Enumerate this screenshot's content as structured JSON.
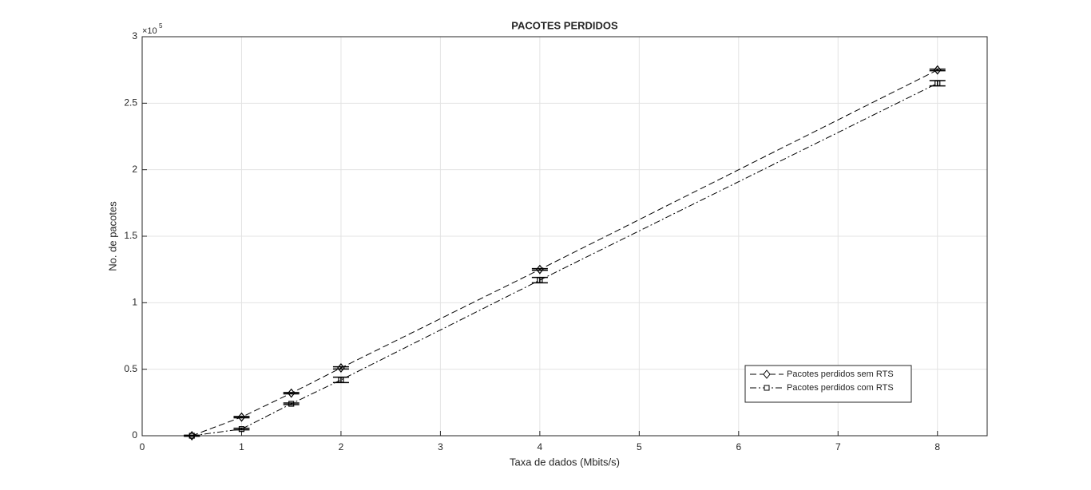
{
  "chart_data": {
    "type": "line",
    "title": "PACOTES PERDIDOS",
    "x_label": "Taxa de dados (Mbits/s)",
    "y_label": "No. de pacotes",
    "y_multiplier": {
      "base": "×10",
      "power": "5"
    },
    "x": [
      0.5,
      1,
      1.5,
      2,
      4,
      8
    ],
    "series": [
      {
        "name": "Pacotes perdidos sem RTS",
        "color": "#000000",
        "dash": "8 4",
        "marker": "diamond",
        "values": [
          0,
          0.14,
          0.32,
          0.51,
          1.25,
          2.75
        ],
        "errors": [
          0.003,
          0.005,
          0.005,
          0.008,
          0.006,
          0.006
        ]
      },
      {
        "name": "Pacotes perdidos com RTS",
        "color": "#000000",
        "dash": "8 3 2 3",
        "marker": "square",
        "values": [
          0,
          0.05,
          0.24,
          0.42,
          1.17,
          2.65
        ],
        "errors": [
          0.003,
          0.006,
          0.006,
          0.02,
          0.02,
          0.02
        ]
      }
    ],
    "xlim": [
      0,
      8.5
    ],
    "ylim": [
      0,
      3
    ],
    "xticks": [
      0,
      1,
      2,
      3,
      4,
      5,
      6,
      7,
      8
    ],
    "yticks": [
      0,
      0.5,
      1,
      1.5,
      2,
      2.5,
      3
    ],
    "grid": true,
    "legend": "southeast"
  }
}
